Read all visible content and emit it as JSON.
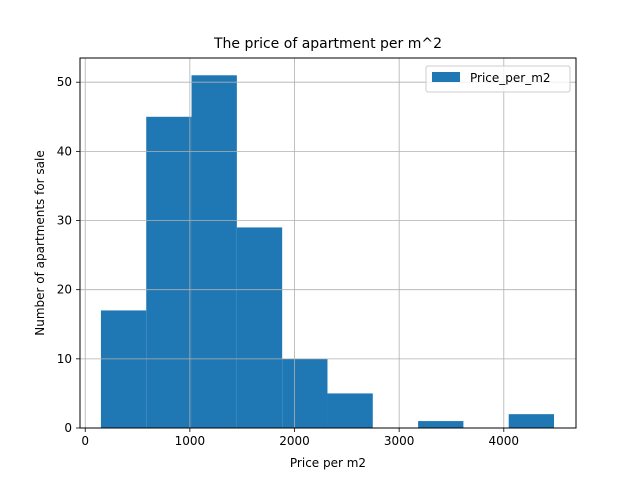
{
  "chart_data": {
    "type": "bar",
    "title": "The price of apartment per m^2",
    "xlabel": "Price per m2",
    "ylabel": "Number of apartments for sale",
    "xlim": [
      -50,
      4690
    ],
    "ylim": [
      0,
      53.5
    ],
    "xticks": [
      0,
      1000,
      2000,
      3000,
      4000
    ],
    "yticks": [
      0,
      10,
      20,
      30,
      40,
      50
    ],
    "grid": true,
    "legend_position": "top-right",
    "series": [
      {
        "name": "Price_per_m2",
        "color": "#1f77b4",
        "bins": [
          {
            "start": 150,
            "end": 583,
            "count": 17
          },
          {
            "start": 583,
            "end": 1016,
            "count": 45
          },
          {
            "start": 1016,
            "end": 1449,
            "count": 51
          },
          {
            "start": 1449,
            "end": 1882,
            "count": 29
          },
          {
            "start": 1882,
            "end": 2315,
            "count": 10
          },
          {
            "start": 2315,
            "end": 2748,
            "count": 5
          },
          {
            "start": 2748,
            "end": 3181,
            "count": 0
          },
          {
            "start": 3181,
            "end": 3614,
            "count": 1
          },
          {
            "start": 3614,
            "end": 4047,
            "count": 0
          },
          {
            "start": 4047,
            "end": 4480,
            "count": 2
          }
        ]
      }
    ]
  }
}
